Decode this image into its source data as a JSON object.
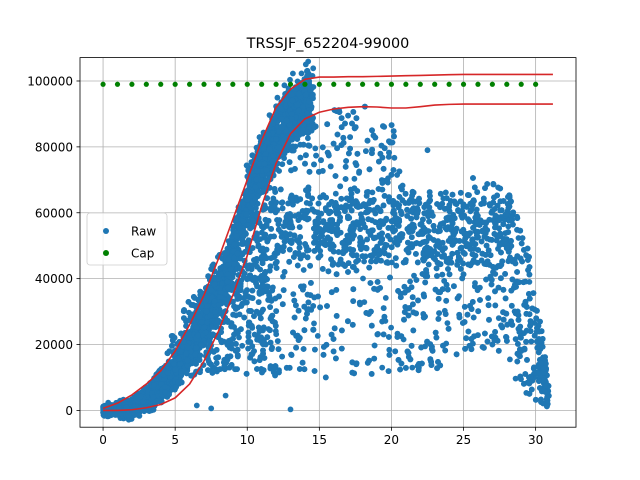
{
  "chart_data": {
    "type": "scatter",
    "title": "TRSSJF_652204-99000",
    "xlabel": "",
    "ylabel": "",
    "xlim": [
      -1.6,
      32.8
    ],
    "ylim": [
      -5100,
      107100
    ],
    "xticks": [
      0,
      5,
      10,
      15,
      20,
      25,
      30
    ],
    "yticks": [
      0,
      20000,
      40000,
      60000,
      80000,
      100000
    ],
    "xtick_labels": [
      "0",
      "5",
      "10",
      "15",
      "20",
      "25",
      "30"
    ],
    "ytick_labels": [
      "0",
      "20000",
      "40000",
      "60000",
      "80000",
      "100000"
    ],
    "grid": true,
    "legend": {
      "placement": "center-left",
      "entries": [
        {
          "label": "Raw",
          "color": "#1f77b4",
          "marker": "dot"
        },
        {
          "label": "Cap",
          "color": "#008000",
          "marker": "dot"
        }
      ]
    },
    "series": [
      {
        "name": "Cap",
        "color": "#008000",
        "marker": "dot",
        "x": [
          0,
          1,
          2,
          3,
          4,
          5,
          6,
          7,
          8,
          9,
          10,
          11,
          12,
          13,
          14,
          15,
          16,
          17,
          18,
          19,
          20,
          21,
          22,
          23,
          24,
          25,
          26,
          27,
          28,
          29,
          30
        ],
        "y": [
          99000,
          99000,
          99000,
          99000,
          99000,
          99000,
          99000,
          99000,
          99000,
          99000,
          99000,
          99000,
          99000,
          99000,
          99000,
          99000,
          99000,
          99000,
          99000,
          99000,
          99000,
          99000,
          99000,
          99000,
          99000,
          99000,
          99000,
          99000,
          99000,
          99000,
          99000
        ]
      },
      {
        "name": "Raw",
        "color": "#1f77b4",
        "marker": "dot",
        "description_points": {
          "x": [
            0,
            0.5,
            1,
            1.5,
            2,
            2.5,
            3,
            3.5,
            4,
            4.5,
            5,
            5.5,
            6,
            6.5,
            7,
            7.5,
            8,
            8.5,
            9,
            9.5,
            10,
            10.5,
            11,
            11.5,
            12,
            12.5,
            13,
            13.5,
            14,
            15,
            16,
            17,
            18,
            19,
            20,
            21,
            22,
            23,
            24,
            25,
            26,
            27,
            28,
            29,
            30,
            31
          ],
          "y_low": [
            0,
            0,
            0,
            0,
            0,
            0,
            500,
            1000,
            2000,
            4000,
            6000,
            8000,
            10000,
            11000,
            12000,
            11000,
            11000,
            12000,
            12000,
            11000,
            10000,
            11000,
            10000,
            11000,
            10000,
            10000,
            10000,
            10000,
            10000,
            10000,
            10000,
            10000,
            10000,
            10000,
            11000,
            11000,
            11000,
            11000,
            12000,
            15000,
            17000,
            18000,
            15000,
            6000,
            2000,
            1000
          ],
          "y_high": [
            800,
            1200,
            1500,
            2500,
            3500,
            5000,
            8000,
            9500,
            13000,
            18000,
            27000,
            31000,
            34000,
            35000,
            38000,
            44000,
            48000,
            50000,
            55000,
            68000,
            75000,
            81000,
            84000,
            87000,
            90000,
            92000,
            94000,
            96000,
            97500,
            93000,
            92000,
            92000,
            93000,
            92000,
            89000,
            68000,
            68000,
            66000,
            67000,
            74000,
            70000,
            69000,
            67000,
            58000,
            39000,
            4000
          ]
        }
      }
    ],
    "fit_curves": [
      {
        "color": "#d62728",
        "x": [
          0,
          1,
          2,
          3,
          4,
          5,
          6,
          7,
          8,
          9,
          10,
          11,
          12,
          13,
          14,
          15,
          16,
          17,
          18,
          19,
          20,
          21,
          22,
          23,
          24,
          25,
          26,
          27,
          28,
          29,
          30,
          31.2
        ],
        "y": [
          600,
          2200,
          4700,
          8000,
          12000,
          18000,
          26000,
          35000,
          46000,
          58000,
          70000,
          82000,
          92000,
          97500,
          100500,
          101200,
          101200,
          101300,
          101300,
          101400,
          101500,
          101600,
          101700,
          101800,
          101900,
          102000,
          102000,
          102000,
          102000,
          102000,
          102000,
          102000
        ]
      },
      {
        "color": "#d62728",
        "x": [
          0,
          1,
          2,
          3,
          4,
          5,
          6,
          7,
          8,
          9,
          10,
          11,
          12,
          13,
          14,
          15,
          16,
          17,
          18,
          19,
          20,
          21,
          22,
          23,
          24,
          25,
          26,
          27,
          28,
          29,
          30,
          31.2
        ],
        "y": [
          0,
          0,
          200,
          800,
          1800,
          3800,
          8000,
          15000,
          24000,
          35000,
          47000,
          62000,
          75000,
          84000,
          88500,
          90500,
          91500,
          92000,
          92200,
          92100,
          91800,
          91800,
          92200,
          92700,
          92900,
          93000,
          93000,
          93000,
          93000,
          93000,
          93000,
          93000
        ]
      }
    ]
  }
}
